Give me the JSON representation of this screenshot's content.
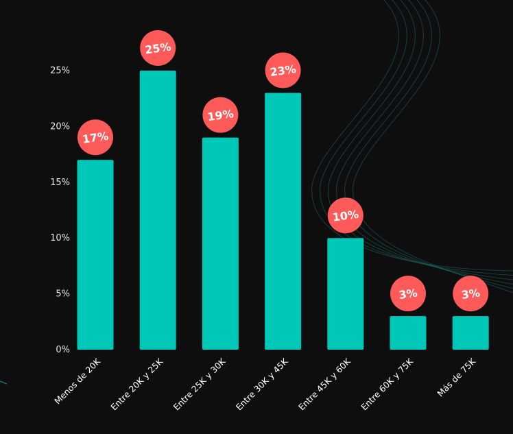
{
  "chart_data": {
    "type": "bar",
    "categories": [
      "Menos de 20K",
      "Entre 20K y 25K",
      "Entre 25K y 30K",
      "Entre 30K y 45K",
      "Entre 45K y 60K",
      "Entre 60K y 75K",
      "Más de 75K"
    ],
    "values": [
      17,
      25,
      19,
      23,
      10,
      3,
      3
    ],
    "data_labels": [
      "17%",
      "25%",
      "19%",
      "23%",
      "10%",
      "3%",
      "3%"
    ],
    "ylim": [
      0,
      25
    ],
    "yticks": [
      0,
      5,
      10,
      15,
      20,
      25
    ],
    "ytick_labels": [
      "0%",
      "5%",
      "10%",
      "15%",
      "20%",
      "25%"
    ],
    "grid": false,
    "legend": "none",
    "colors": {
      "background": "#0e0e0f",
      "bar": "#00c8b9",
      "label_bubble": "#ff5a5a",
      "decor_line": "#1f6a63"
    }
  }
}
